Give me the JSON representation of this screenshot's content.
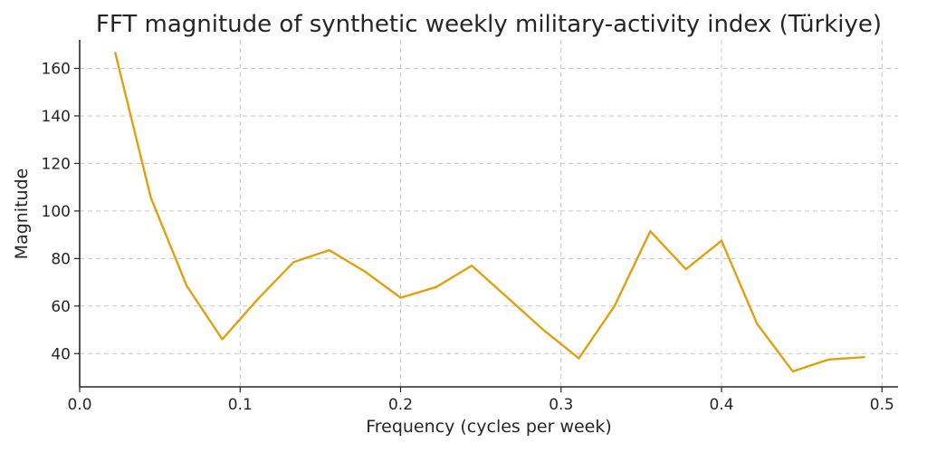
{
  "chart_data": {
    "type": "line",
    "title": "FFT magnitude of synthetic weekly military-activity index (Türkiye)",
    "xlabel": "Frequency (cycles per week)",
    "ylabel": "Magnitude",
    "xlim": [
      0.0,
      0.51
    ],
    "ylim": [
      26,
      172
    ],
    "xticks": [
      0.0,
      0.1,
      0.2,
      0.3,
      0.4,
      0.5
    ],
    "xtick_labels": [
      "0.0",
      "0.1",
      "0.2",
      "0.3",
      "0.4",
      "0.5"
    ],
    "yticks": [
      40,
      60,
      80,
      100,
      120,
      140,
      160
    ],
    "ytick_labels": [
      "40",
      "60",
      "80",
      "100",
      "120",
      "140",
      "160"
    ],
    "grid": true,
    "series": [
      {
        "name": "FFT magnitude",
        "color": "#e0a010",
        "x": [
          0.0222,
          0.0444,
          0.0667,
          0.0889,
          0.1111,
          0.1333,
          0.1556,
          0.1778,
          0.2,
          0.2222,
          0.2444,
          0.2667,
          0.2889,
          0.3111,
          0.3333,
          0.3556,
          0.3778,
          0.4,
          0.4222,
          0.4444,
          0.4667,
          0.4889
        ],
        "y": [
          166.5,
          105.5,
          68.5,
          46,
          63,
          78.5,
          83.5,
          74.5,
          63.5,
          68,
          77,
          63.5,
          50,
          38,
          60,
          91.5,
          75.5,
          87.5,
          52.5,
          32.5,
          37.5,
          38.5
        ]
      }
    ]
  }
}
